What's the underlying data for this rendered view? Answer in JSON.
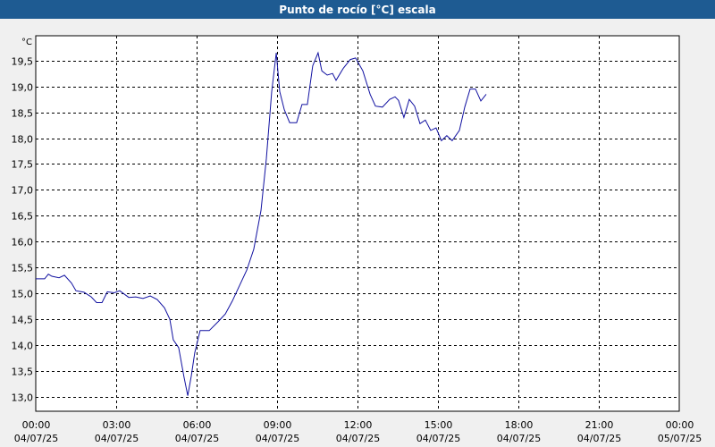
{
  "window": {
    "title": "Punto de rocío [°C] escala"
  },
  "colors": {
    "title_bar": "#1e5b92",
    "plot_background": "#ffffff",
    "page_background": "#f0f0f0",
    "series_line": "#1010a0",
    "grid": "#000000"
  },
  "chart_data": {
    "type": "line",
    "title": "Punto de rocío [°C] escala",
    "ylabel": "°C",
    "xlabel": "",
    "grid": true,
    "grid_style": "dashed",
    "ylim": [
      12.72,
      19.98
    ],
    "xlim_hours": [
      0,
      24
    ],
    "y_ticks": [
      {
        "value": 13.0,
        "label": "13,0"
      },
      {
        "value": 13.5,
        "label": "13,5"
      },
      {
        "value": 14.0,
        "label": "14,0"
      },
      {
        "value": 14.5,
        "label": "14,5"
      },
      {
        "value": 15.0,
        "label": "15,0"
      },
      {
        "value": 15.5,
        "label": "15,5"
      },
      {
        "value": 16.0,
        "label": "16,0"
      },
      {
        "value": 16.5,
        "label": "16,5"
      },
      {
        "value": 17.0,
        "label": "17,0"
      },
      {
        "value": 17.5,
        "label": "17,5"
      },
      {
        "value": 18.0,
        "label": "18,0"
      },
      {
        "value": 18.5,
        "label": "18,5"
      },
      {
        "value": 19.0,
        "label": "19,0"
      },
      {
        "value": 19.5,
        "label": "19,5"
      }
    ],
    "x_ticks": [
      {
        "hour": 0,
        "time": "00:00",
        "date": "04/07/25"
      },
      {
        "hour": 3,
        "time": "03:00",
        "date": "04/07/25"
      },
      {
        "hour": 6,
        "time": "06:00",
        "date": "04/07/25"
      },
      {
        "hour": 9,
        "time": "09:00",
        "date": "04/07/25"
      },
      {
        "hour": 12,
        "time": "12:00",
        "date": "04/07/25"
      },
      {
        "hour": 15,
        "time": "15:00",
        "date": "04/07/25"
      },
      {
        "hour": 18,
        "time": "18:00",
        "date": "04/07/25"
      },
      {
        "hour": 21,
        "time": "21:00",
        "date": "04/07/25"
      },
      {
        "hour": 24,
        "time": "00:00",
        "date": "05/07/25"
      }
    ],
    "series": [
      {
        "points": [
          [
            0.0,
            15.28
          ],
          [
            0.33,
            15.28
          ],
          [
            0.47,
            15.37
          ],
          [
            0.6,
            15.33
          ],
          [
            0.87,
            15.3
          ],
          [
            1.07,
            15.35
          ],
          [
            1.33,
            15.2
          ],
          [
            1.5,
            15.05
          ],
          [
            1.8,
            15.02
          ],
          [
            2.07,
            14.93
          ],
          [
            2.27,
            14.82
          ],
          [
            2.47,
            14.82
          ],
          [
            2.67,
            15.03
          ],
          [
            2.93,
            15.01
          ],
          [
            3.13,
            15.05
          ],
          [
            3.47,
            14.92
          ],
          [
            3.73,
            14.93
          ],
          [
            4.0,
            14.9
          ],
          [
            4.27,
            14.95
          ],
          [
            4.53,
            14.88
          ],
          [
            4.8,
            14.72
          ],
          [
            5.0,
            14.5
          ],
          [
            5.13,
            14.1
          ],
          [
            5.33,
            13.95
          ],
          [
            5.53,
            13.38
          ],
          [
            5.67,
            13.02
          ],
          [
            5.8,
            13.4
          ],
          [
            5.93,
            13.85
          ],
          [
            6.13,
            14.28
          ],
          [
            6.47,
            14.28
          ],
          [
            6.8,
            14.45
          ],
          [
            7.07,
            14.6
          ],
          [
            7.33,
            14.85
          ],
          [
            7.6,
            15.15
          ],
          [
            7.87,
            15.45
          ],
          [
            8.13,
            15.85
          ],
          [
            8.4,
            16.6
          ],
          [
            8.6,
            17.6
          ],
          [
            8.8,
            18.9
          ],
          [
            8.97,
            19.65
          ],
          [
            9.1,
            18.9
          ],
          [
            9.27,
            18.55
          ],
          [
            9.47,
            18.3
          ],
          [
            9.73,
            18.3
          ],
          [
            9.93,
            18.65
          ],
          [
            10.13,
            18.65
          ],
          [
            10.33,
            19.4
          ],
          [
            10.53,
            19.65
          ],
          [
            10.67,
            19.3
          ],
          [
            10.87,
            19.22
          ],
          [
            11.07,
            19.25
          ],
          [
            11.2,
            19.12
          ],
          [
            11.47,
            19.35
          ],
          [
            11.73,
            19.52
          ],
          [
            11.93,
            19.55
          ],
          [
            12.2,
            19.3
          ],
          [
            12.47,
            18.85
          ],
          [
            12.67,
            18.62
          ],
          [
            12.93,
            18.6
          ],
          [
            13.2,
            18.75
          ],
          [
            13.4,
            18.8
          ],
          [
            13.53,
            18.73
          ],
          [
            13.73,
            18.4
          ],
          [
            13.93,
            18.75
          ],
          [
            14.13,
            18.62
          ],
          [
            14.33,
            18.28
          ],
          [
            14.53,
            18.35
          ],
          [
            14.73,
            18.15
          ],
          [
            14.93,
            18.2
          ],
          [
            15.13,
            17.95
          ],
          [
            15.33,
            18.05
          ],
          [
            15.53,
            17.95
          ],
          [
            15.8,
            18.15
          ],
          [
            16.0,
            18.6
          ],
          [
            16.2,
            18.95
          ],
          [
            16.4,
            18.95
          ],
          [
            16.6,
            18.72
          ],
          [
            16.8,
            18.85
          ]
        ]
      }
    ]
  }
}
